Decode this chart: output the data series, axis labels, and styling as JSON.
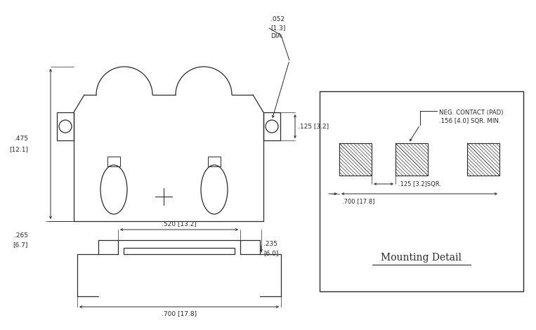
{
  "bg_color": "#ffffff",
  "line_color": "#2a2a2a",
  "fig_width": 7.63,
  "fig_height": 4.7,
  "dpi": 100,
  "annotations": {
    "top_dim": ".052",
    "top_dim2": "[1.3]",
    "dia_label": "DIA.",
    "right_dim": ".125 [3.2]",
    "left_height1": ".475",
    "left_height1b": "[12.1]",
    "left_height2": ".265",
    "left_height2b": "[6.7]",
    "bottom_width1": ".520 [13.2]",
    "bottom_width2": ".700 [17.8]",
    "side_height1": ".235",
    "side_height1b": "[6.0]",
    "detail_title": "Mounting Detail",
    "detail_label1": "NEG. CONTACT (PAD)",
    "detail_label2": ".156 [4.0] SQR. MIN.",
    "detail_dim1": ".125 [3.2]SQR.",
    "detail_dim2": ".700 [17.8]"
  }
}
